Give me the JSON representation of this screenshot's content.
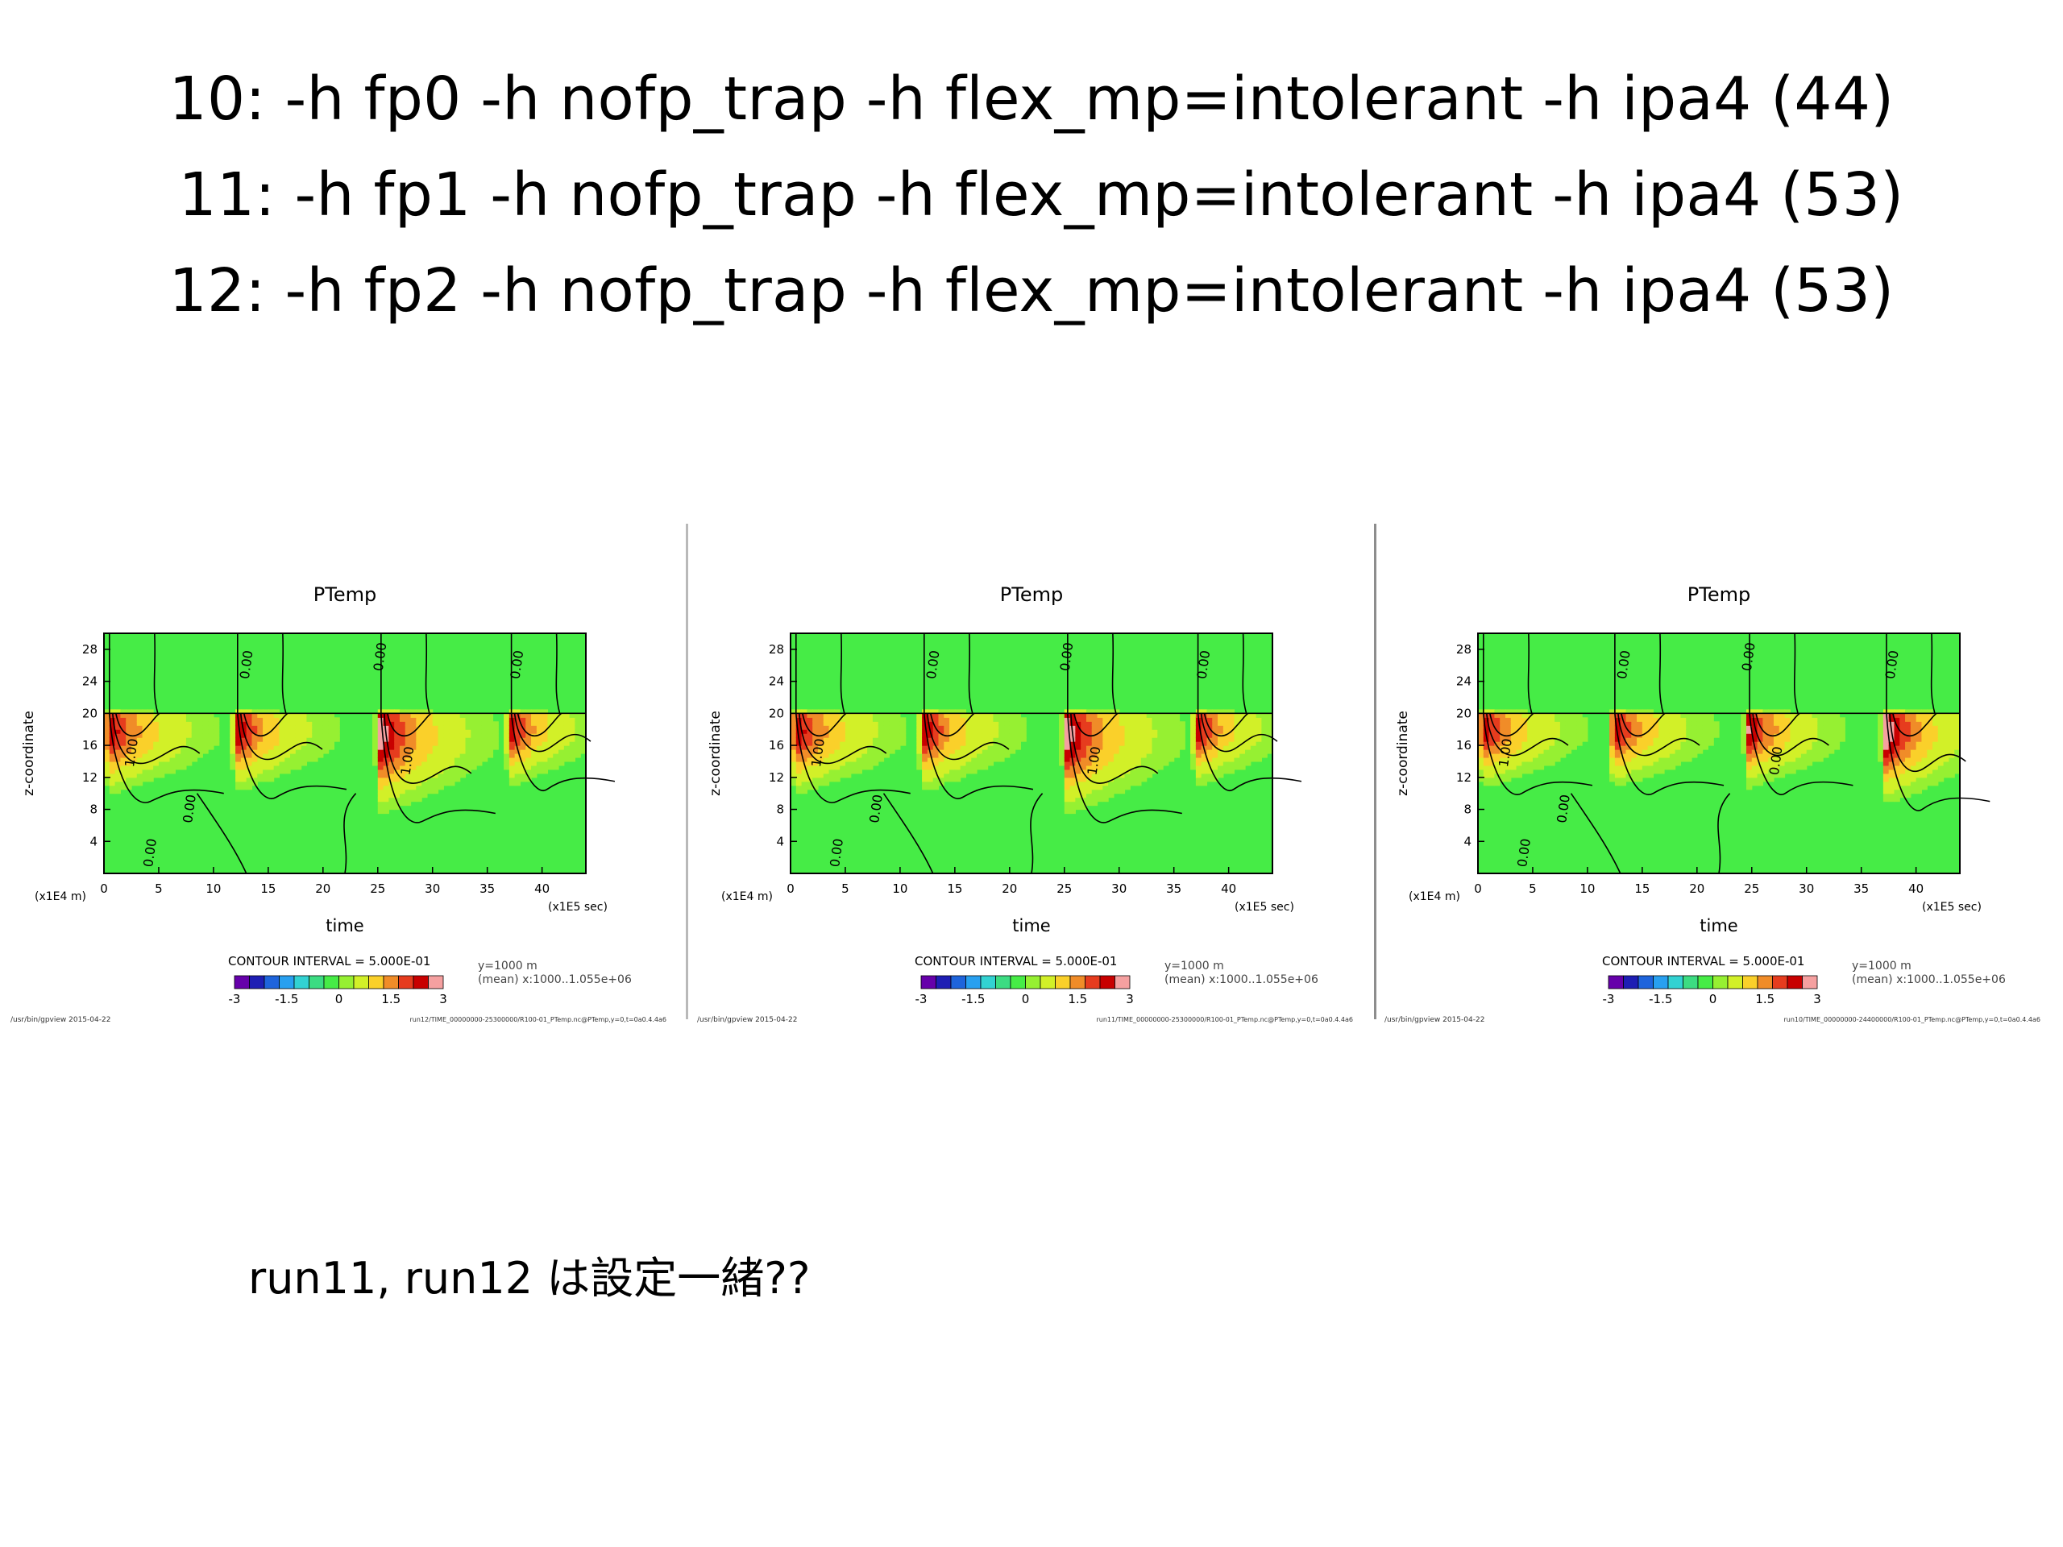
{
  "slide": {
    "title_lines": [
      "10: -h fp0 -h nofp_trap -h flex_mp=intolerant -h ipa4 (44)",
      "11: -h fp1 -h nofp_trap -h flex_mp=intolerant -h ipa4 (53)",
      "12: -h fp2 -h nofp_trap -h flex_mp=intolerant -h ipa4 (53)"
    ],
    "note": "run11, run12 は設定一緒??"
  },
  "chart_data": [
    {
      "type": "heatmap",
      "title": "PTemp",
      "xlabel": "time",
      "ylabel": "z-coordinate",
      "x_unit": "(x1E5 sec)",
      "y_unit": "(x1E4 m)",
      "xlim": [
        0,
        44
      ],
      "ylim": [
        0,
        30
      ],
      "xticks": [
        0,
        5,
        10,
        15,
        20,
        25,
        30,
        35,
        40
      ],
      "yticks": [
        4,
        8,
        12,
        16,
        20,
        24,
        28
      ],
      "contour_interval": "CONTOUR INTERVAL = 5.000E-01",
      "meta": [
        "y=1000 m",
        "(mean) x:1000..1.055e+06"
      ],
      "colorbar_ticks": [
        "-3",
        "-1.5",
        "0",
        "1.5",
        "3"
      ],
      "colorbar_colors": [
        "#6600aa",
        "#1e1eb4",
        "#1e64dc",
        "#28a0f0",
        "#32d2d2",
        "#3cdc82",
        "#46ec46",
        "#96f032",
        "#d2f028",
        "#fad02a",
        "#f08c28",
        "#e63c1e",
        "#c80000",
        "#f5a0a0"
      ],
      "contour_labels": [
        "1.00",
        "0.00",
        "0.00",
        "0.00",
        "1.00",
        "0.00",
        "0.00"
      ],
      "footer_left": "/usr/bin/gpview   2015-04-22",
      "footer_right": "run12/TIME_00000000-25300000/R100-01_PTemp.nc@PTemp,y=0,t=0a0.4.4a6",
      "events": [
        {
          "t": 0.5,
          "amp": 1.0,
          "depth": 12,
          "width": 7.5
        },
        {
          "t": 12.2,
          "amp": 0.95,
          "depth": 11.5,
          "width": 7.0
        },
        {
          "t": 25.3,
          "amp": 1.15,
          "depth": 14.5,
          "width": 7.5
        },
        {
          "t": 37.2,
          "amp": 0.9,
          "depth": 10.5,
          "width": 6.5
        }
      ]
    },
    {
      "type": "heatmap",
      "title": "PTemp",
      "xlabel": "time",
      "ylabel": "z-coordinate",
      "x_unit": "(x1E5 sec)",
      "y_unit": "(x1E4 m)",
      "xlim": [
        0,
        44
      ],
      "ylim": [
        0,
        30
      ],
      "xticks": [
        0,
        5,
        10,
        15,
        20,
        25,
        30,
        35,
        40
      ],
      "yticks": [
        4,
        8,
        12,
        16,
        20,
        24,
        28
      ],
      "contour_interval": "CONTOUR INTERVAL = 5.000E-01",
      "meta": [
        "y=1000 m",
        "(mean) x:1000..1.055e+06"
      ],
      "colorbar_ticks": [
        "-3",
        "-1.5",
        "0",
        "1.5",
        "3"
      ],
      "colorbar_colors": [
        "#6600aa",
        "#1e1eb4",
        "#1e64dc",
        "#28a0f0",
        "#32d2d2",
        "#3cdc82",
        "#46ec46",
        "#96f032",
        "#d2f028",
        "#fad02a",
        "#f08c28",
        "#e63c1e",
        "#c80000",
        "#f5a0a0"
      ],
      "contour_labels": [
        "1.00",
        "0.00",
        "0.00",
        "0.00",
        "1.00",
        "0.00",
        "0.00"
      ],
      "footer_left": "/usr/bin/gpview   2015-04-22",
      "footer_right": "run11/TIME_00000000-25300000/R100-01_PTemp.nc@PTemp,y=0,t=0a0.4.4a6",
      "events": [
        {
          "t": 0.5,
          "amp": 1.0,
          "depth": 12,
          "width": 7.5
        },
        {
          "t": 12.2,
          "amp": 0.95,
          "depth": 11.5,
          "width": 7.0
        },
        {
          "t": 25.3,
          "amp": 1.15,
          "depth": 14.5,
          "width": 7.5
        },
        {
          "t": 37.2,
          "amp": 0.9,
          "depth": 10.5,
          "width": 6.5
        }
      ]
    },
    {
      "type": "heatmap",
      "title": "PTemp",
      "xlabel": "time",
      "ylabel": "z-coordinate",
      "x_unit": "(x1E5 sec)",
      "y_unit": "(x1E4 m)",
      "xlim": [
        0,
        44
      ],
      "ylim": [
        0,
        30
      ],
      "xticks": [
        0,
        5,
        10,
        15,
        20,
        25,
        30,
        35,
        40
      ],
      "yticks": [
        4,
        8,
        12,
        16,
        20,
        24,
        28
      ],
      "contour_interval": "CONTOUR INTERVAL = 5.000E-01",
      "meta": [
        "y=1000 m",
        "(mean) x:1000..1.055e+06"
      ],
      "colorbar_ticks": [
        "-3",
        "-1.5",
        "0",
        "1.5",
        "3"
      ],
      "colorbar_colors": [
        "#6600aa",
        "#1e1eb4",
        "#1e64dc",
        "#28a0f0",
        "#32d2d2",
        "#3cdc82",
        "#46ec46",
        "#96f032",
        "#d2f028",
        "#fad02a",
        "#f08c28",
        "#e63c1e",
        "#c80000",
        "#f5a0a0"
      ],
      "contour_labels": [
        "1.00",
        "0.00",
        "0.00",
        "0.00",
        "0.00",
        "0.00",
        "0.00"
      ],
      "footer_left": "/usr/bin/gpview   2015-04-22",
      "footer_right": "run10/TIME_00000000-24400000/R100-01_PTemp.nc@PTemp,y=0,t=0a0.4.4a6",
      "events": [
        {
          "t": 0.5,
          "amp": 1.0,
          "depth": 11,
          "width": 7.0
        },
        {
          "t": 12.5,
          "amp": 0.95,
          "depth": 11,
          "width": 7.0
        },
        {
          "t": 24.8,
          "amp": 1.0,
          "depth": 11,
          "width": 6.5
        },
        {
          "t": 37.3,
          "amp": 1.2,
          "depth": 13,
          "width": 6.5
        }
      ]
    }
  ]
}
